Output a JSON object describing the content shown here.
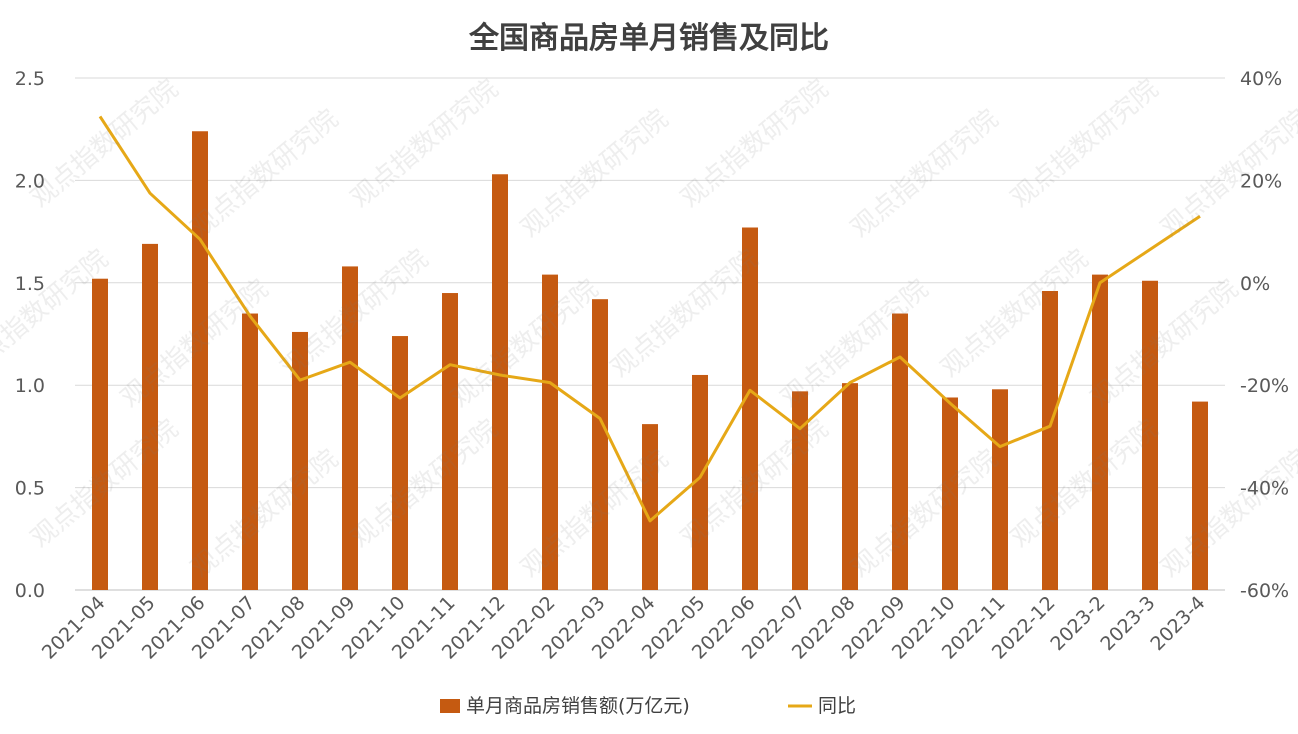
{
  "chart_data": {
    "type": "bar",
    "title": "全国商品房单月销售及同比",
    "categories": [
      "2021-04",
      "2021-05",
      "2021-06",
      "2021-07",
      "2021-08",
      "2021-09",
      "2021-10",
      "2021-11",
      "2021-12",
      "2022-02",
      "2022-03",
      "2022-04",
      "2022-05",
      "2022-06",
      "2022-07",
      "2022-08",
      "2022-09",
      "2022-10",
      "2022-11",
      "2022-12",
      "2023-2",
      "2023-3",
      "2023-4"
    ],
    "series": [
      {
        "name": "单月商品房销售额(万亿元)",
        "type": "bar",
        "axis": "left",
        "color": "#C55A11",
        "values": [
          1.52,
          1.69,
          2.24,
          1.35,
          1.26,
          1.58,
          1.24,
          1.45,
          2.03,
          1.54,
          1.42,
          0.81,
          1.05,
          1.77,
          0.97,
          1.01,
          1.35,
          0.94,
          0.98,
          1.46,
          1.54,
          1.51,
          0.92
        ]
      },
      {
        "name": "同比",
        "type": "line",
        "axis": "right",
        "color": "#E6A817",
        "values": [
          32.5,
          17.5,
          8.5,
          -6.5,
          -19.0,
          -15.5,
          -22.5,
          -16.0,
          -18.0,
          -19.5,
          -26.5,
          -46.5,
          -38.0,
          -21.0,
          -28.5,
          -19.5,
          -14.5,
          -23.5,
          -32.0,
          -28.0,
          0.0,
          6.5,
          13.0
        ]
      }
    ],
    "y_left": {
      "ylim": [
        0,
        2.5
      ],
      "ticks": [
        0,
        0.5,
        1.0,
        1.5,
        2.0,
        2.5
      ],
      "tick_labels": [
        "0.0",
        "0.5",
        "1.0",
        "1.5",
        "2.0",
        "2.5"
      ]
    },
    "y_right": {
      "ylim": [
        -60,
        40
      ],
      "ticks": [
        -60,
        -40,
        -20,
        0,
        20,
        40
      ],
      "tick_labels": [
        "-60%",
        "-40%",
        "-20%",
        "0%",
        "20%",
        "40%"
      ]
    },
    "grid": true,
    "legend_position": "bottom"
  },
  "watermark": "观点指数研究院"
}
